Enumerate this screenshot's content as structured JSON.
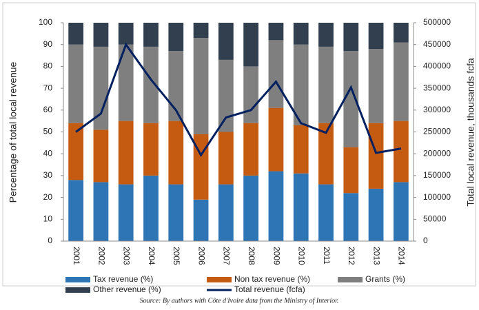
{
  "chart_data": {
    "type": "bar",
    "stacked": true,
    "ylabel": "Percentage of total local revenue",
    "y2label": "Total local revenue, thousands fcfa",
    "source": "Source: By authors with Côte d'Ivoire data from the Ministry of Interior.",
    "categories": [
      "2001",
      "2002",
      "2003",
      "2004",
      "2005",
      "2006",
      "2007",
      "2008",
      "2009",
      "2010",
      "2011",
      "2012",
      "2013",
      "2014"
    ],
    "series": [
      {
        "name": "Tax revenue (%)",
        "color": "#2e75b6",
        "values": [
          28,
          27,
          26,
          30,
          26,
          19,
          26,
          30,
          32,
          31,
          26,
          22,
          24,
          27
        ]
      },
      {
        "name": "Non tax revenue (%)",
        "color": "#c55a11",
        "values": [
          26,
          24,
          29,
          24,
          29,
          30,
          24,
          24,
          29,
          22,
          28,
          21,
          30,
          28
        ]
      },
      {
        "name": "Grants (%)",
        "color": "#7f7f7f",
        "values": [
          36,
          38,
          35,
          35,
          32,
          44,
          33,
          26,
          31,
          37,
          35,
          44,
          34,
          36
        ]
      },
      {
        "name": "Other revenue (%)",
        "color": "#323f4f",
        "values": [
          10,
          11,
          10,
          11,
          13,
          7,
          17,
          20,
          8,
          10,
          11,
          13,
          12,
          9
        ]
      },
      {
        "name": "Total revenue (fcfa)",
        "color": "#002060",
        "type": "line",
        "axis": "y2",
        "values": [
          250000,
          292000,
          450000,
          370000,
          300000,
          197000,
          283000,
          300000,
          365000,
          270000,
          248000,
          352000,
          202000,
          212000
        ]
      }
    ],
    "ylim": [
      0,
      100
    ],
    "yticks": [
      0,
      10,
      20,
      30,
      40,
      50,
      60,
      70,
      80,
      90,
      100
    ],
    "y2lim": [
      0,
      500000
    ],
    "y2ticks": [
      0,
      50000,
      100000,
      150000,
      200000,
      250000,
      300000,
      350000,
      400000,
      450000,
      500000
    ],
    "grid": false,
    "legend": "bottom"
  }
}
